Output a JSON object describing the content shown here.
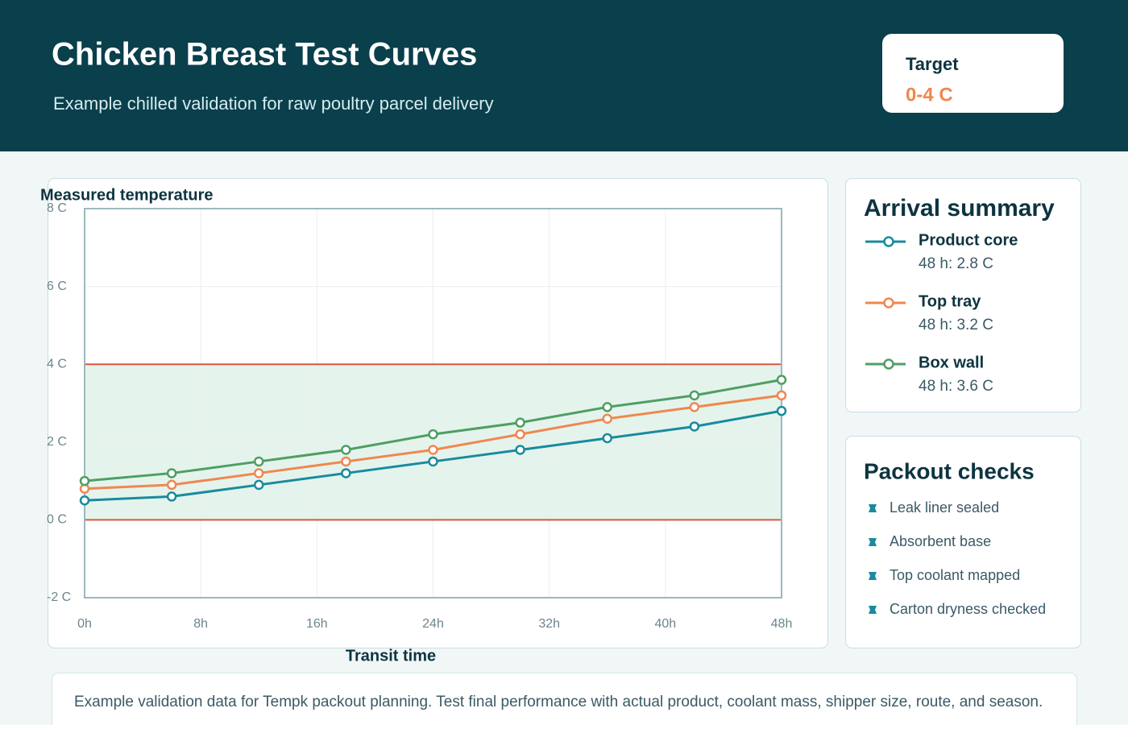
{
  "header": {
    "title": "Chicken Breast Test Curves",
    "subtitle": "Example chilled validation for raw poultry parcel delivery",
    "target_label": "Target",
    "target_value": "0-4 C"
  },
  "chart_data": {
    "type": "line",
    "y_axis_label": "Measured temperature",
    "x_axis_label": "Transit time",
    "x": [
      0,
      6,
      12,
      18,
      24,
      30,
      36,
      42,
      48
    ],
    "xlim": [
      0,
      48
    ],
    "xticks": [
      {
        "value": 0,
        "label": "0h"
      },
      {
        "value": 8,
        "label": "8h"
      },
      {
        "value": 16,
        "label": "16h"
      },
      {
        "value": 24,
        "label": "24h"
      },
      {
        "value": 32,
        "label": "32h"
      },
      {
        "value": 40,
        "label": "40h"
      },
      {
        "value": 48,
        "label": "48h"
      }
    ],
    "ylim": [
      -2,
      8
    ],
    "yticks": [
      {
        "value": -2,
        "label": "-2 C"
      },
      {
        "value": 0,
        "label": "0 C"
      },
      {
        "value": 2,
        "label": "2 C"
      },
      {
        "value": 4,
        "label": "4 C"
      },
      {
        "value": 6,
        "label": "6 C"
      },
      {
        "value": 8,
        "label": "8 C"
      }
    ],
    "grid": true,
    "target_band": [
      0,
      4
    ],
    "target_band_color": "#e4f4ec",
    "target_line_color": "#d9573f",
    "series": [
      {
        "name": "Product core",
        "color": "#1a8a9e",
        "values": [
          0.5,
          0.6,
          0.9,
          1.2,
          1.5,
          1.8,
          2.1,
          2.4,
          2.8
        ]
      },
      {
        "name": "Top tray",
        "color": "#f0874f",
        "values": [
          0.8,
          0.9,
          1.2,
          1.5,
          1.8,
          2.2,
          2.6,
          2.9,
          3.2
        ]
      },
      {
        "name": "Box wall",
        "color": "#4f9e64",
        "values": [
          1.0,
          1.2,
          1.5,
          1.8,
          2.2,
          2.5,
          2.9,
          3.2,
          3.6
        ]
      }
    ]
  },
  "summary": {
    "title": "Arrival summary",
    "details": [
      "48 h: 2.8 C",
      "48 h: 3.2 C",
      "48 h: 3.6 C"
    ]
  },
  "checks": {
    "title": "Packout checks",
    "items": [
      "Leak liner sealed",
      "Absorbent base",
      "Top coolant mapped",
      "Carton dryness checked"
    ]
  },
  "footer": "Example validation data for Tempk packout planning. Test final performance with actual product, coolant mass, shipper size, route, and season."
}
